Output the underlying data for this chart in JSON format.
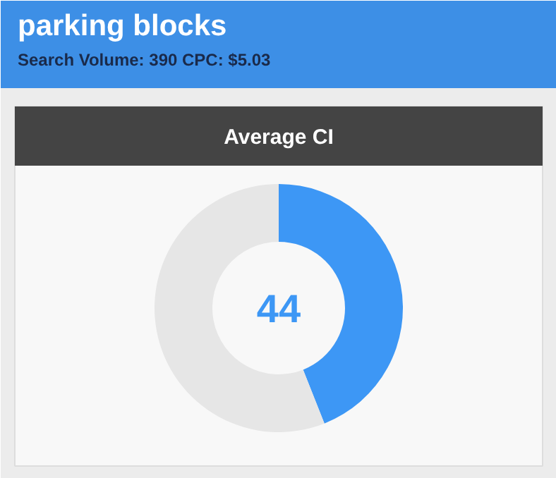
{
  "chart_data": {
    "type": "donut",
    "title": "parking blocks",
    "subtitle": "Search Volume: 390 CPC: $5.03",
    "categories": [
      null,
      null
    ],
    "values": [
      44,
      56
    ],
    "colors": [
      "#3d97f5",
      "#e6e6e6"
    ],
    "annotations": [
      "Average CI",
      "44"
    ]
  }
}
